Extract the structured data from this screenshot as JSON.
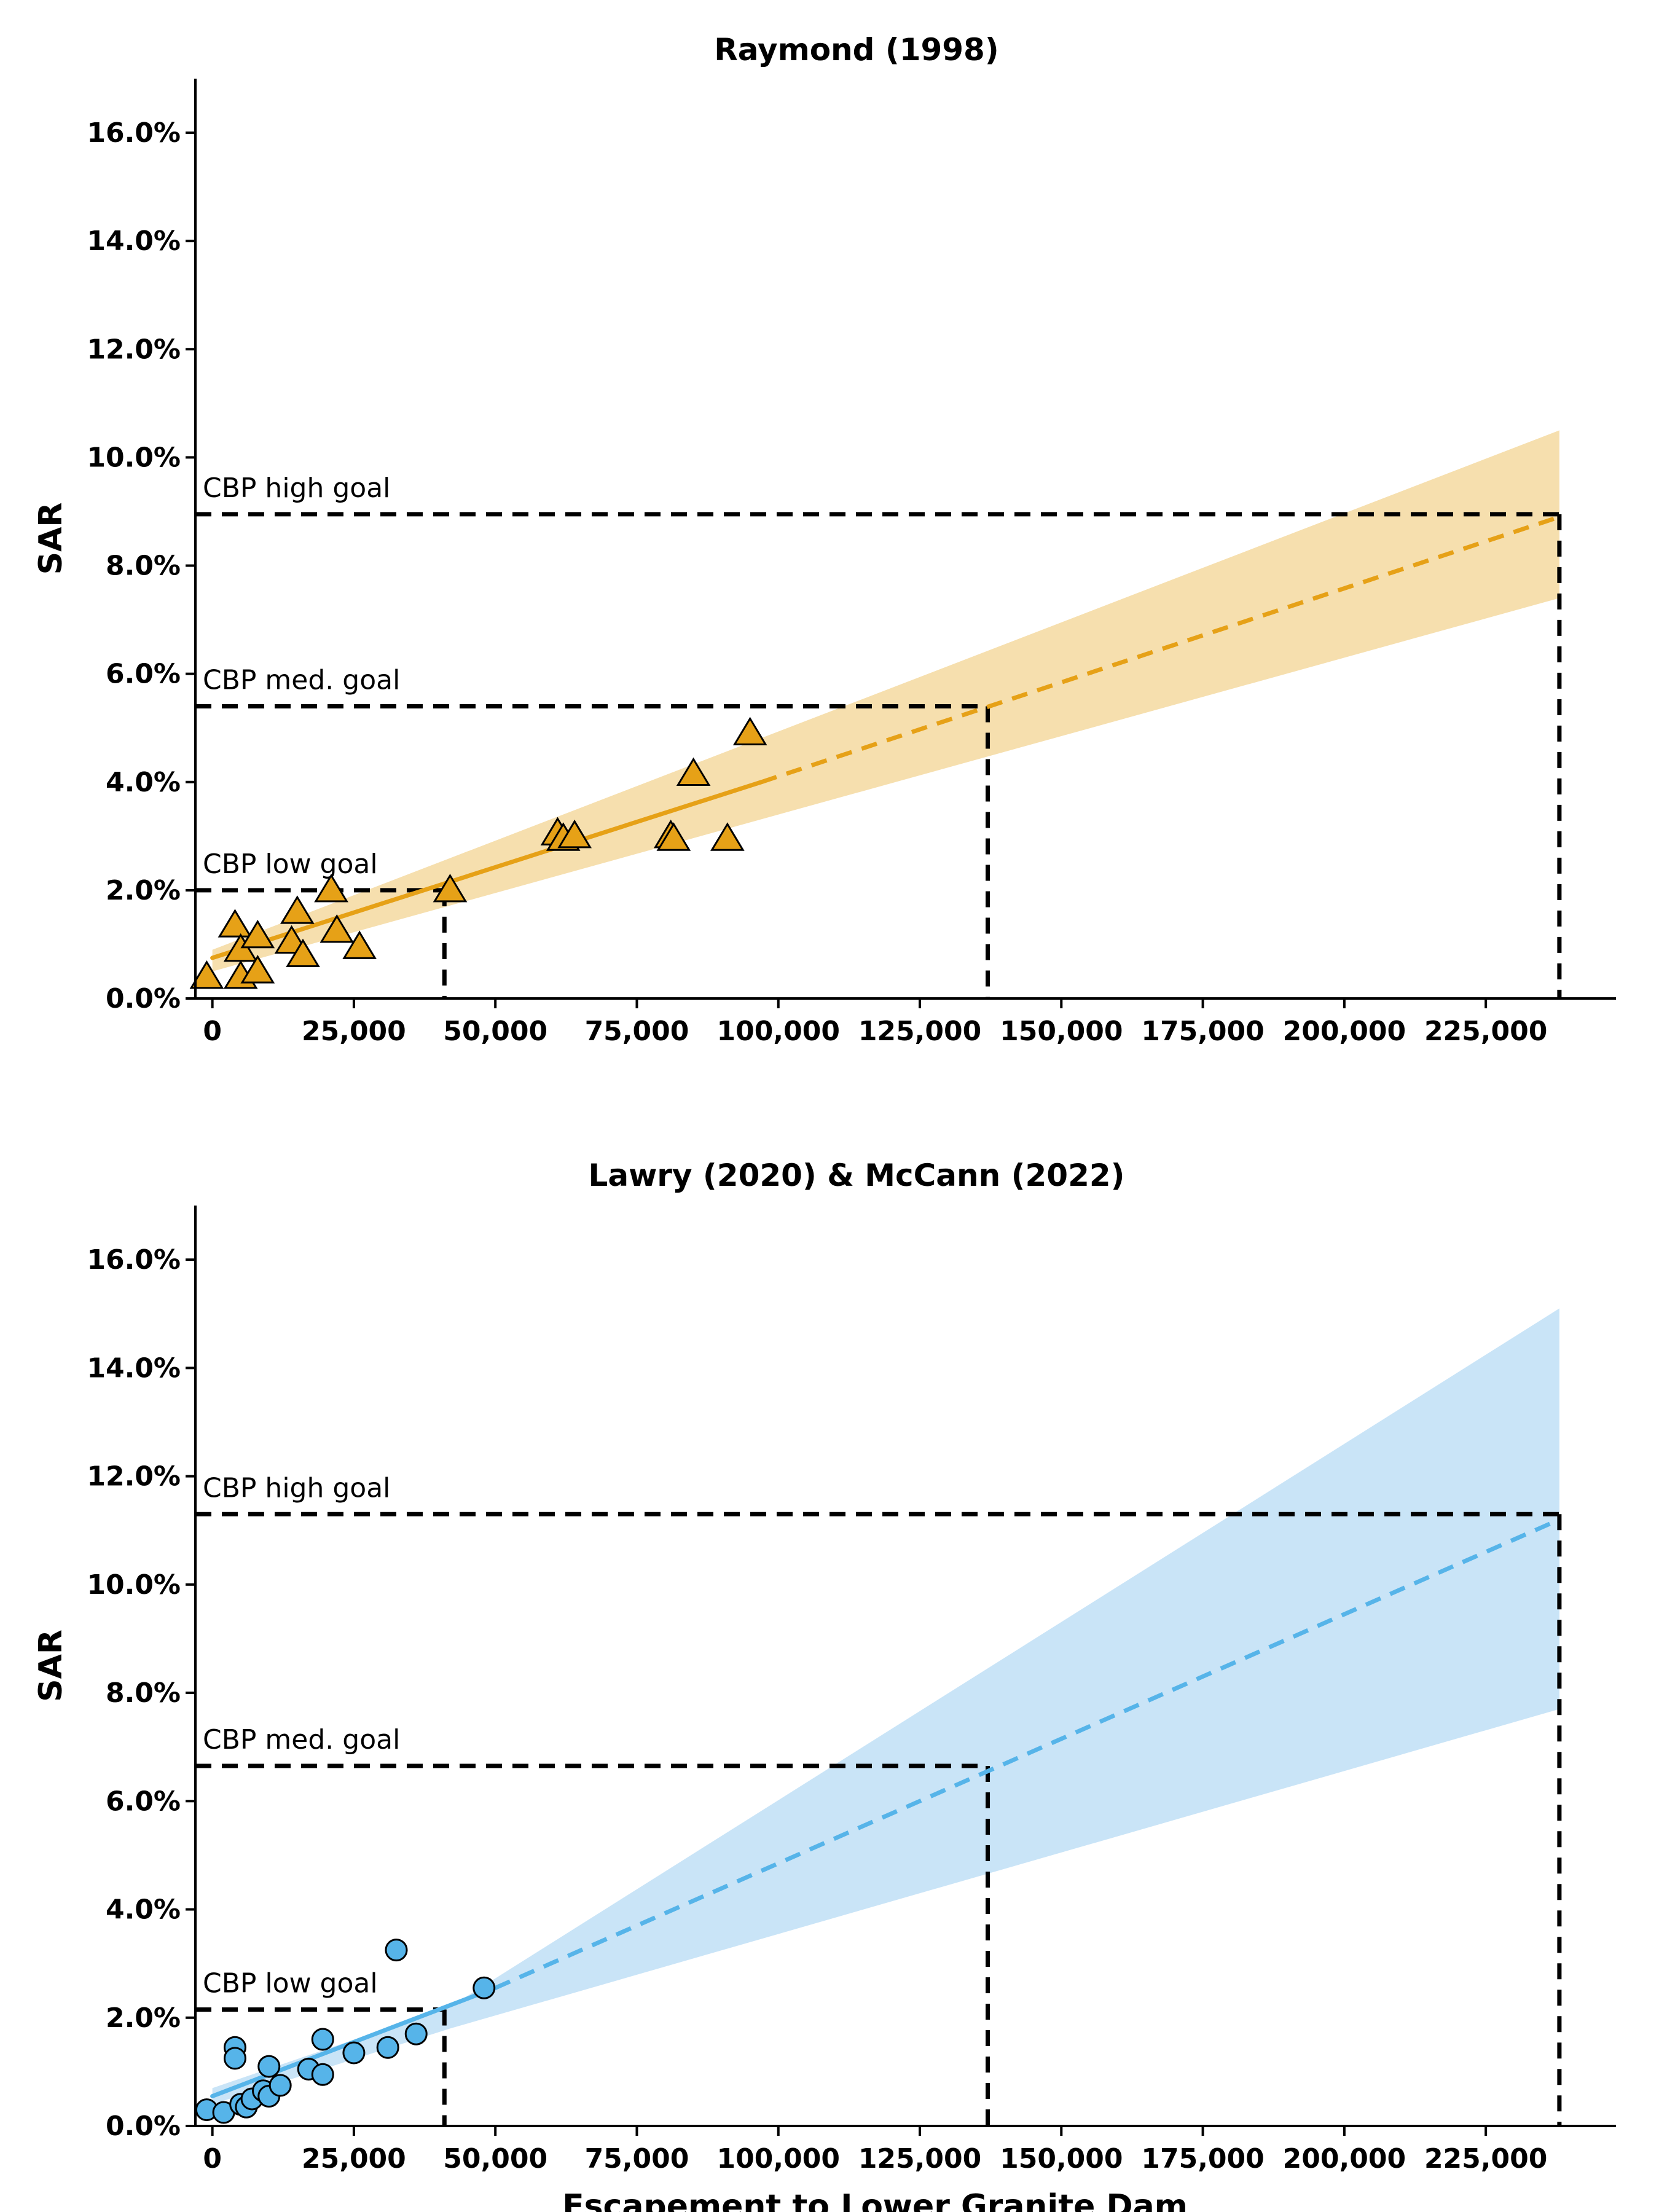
{
  "chart_data": [
    {
      "type": "scatter",
      "title": "Raymond (1998)",
      "xlabel": "",
      "ylabel": "SAR",
      "xlim": [
        -3000,
        248000
      ],
      "ylim": [
        0,
        0.17
      ],
      "xticks": [
        0,
        25000,
        50000,
        75000,
        100000,
        125000,
        150000,
        175000,
        200000,
        225000
      ],
      "xtick_labels": [
        "0",
        "25,000",
        "50,000",
        "75,000",
        "100,000",
        "125,000",
        "150,000",
        "175,000",
        "200,000",
        "225,000"
      ],
      "yticks": [
        0,
        0.02,
        0.04,
        0.06,
        0.08,
        0.1,
        0.12,
        0.14,
        0.16
      ],
      "ytick_labels": [
        "0.0%",
        "2.0%",
        "4.0%",
        "6.0%",
        "8.0%",
        "10.0%",
        "12.0%",
        "14.0%",
        "16.0%"
      ],
      "color": "#E6A117",
      "band_color": "#F6DFAE",
      "marker": "triangle",
      "points": [
        [
          -1000,
          0.004
        ],
        [
          4000,
          0.0135
        ],
        [
          5000,
          0.009
        ],
        [
          5000,
          0.004
        ],
        [
          8000,
          0.0115
        ],
        [
          8000,
          0.005
        ],
        [
          14000,
          0.0105
        ],
        [
          15000,
          0.016
        ],
        [
          16000,
          0.008
        ],
        [
          21000,
          0.02
        ],
        [
          22000,
          0.0125
        ],
        [
          26000,
          0.0095
        ],
        [
          42000,
          0.02
        ],
        [
          61000,
          0.0305
        ],
        [
          62000,
          0.0295
        ],
        [
          64000,
          0.03
        ],
        [
          81000,
          0.03
        ],
        [
          81500,
          0.0295
        ],
        [
          85000,
          0.0415
        ],
        [
          91000,
          0.0295
        ],
        [
          95000,
          0.049
        ]
      ],
      "fit_solid": [
        [
          0,
          0.0075
        ],
        [
          97000,
          0.04
        ]
      ],
      "fit_dashed": [
        [
          97000,
          0.04
        ],
        [
          238000,
          0.089
        ]
      ],
      "band": {
        "x": [
          0,
          238000
        ],
        "lower": [
          0.005,
          0.074
        ],
        "upper": [
          0.009,
          0.105
        ]
      },
      "goals": [
        {
          "label": "CBP high goal",
          "sar": 0.0895,
          "escapement": 238000
        },
        {
          "label": "CBP med. goal",
          "sar": 0.054,
          "escapement": 137000
        },
        {
          "label": "CBP low goal",
          "sar": 0.02,
          "escapement": 41000
        }
      ]
    },
    {
      "type": "scatter",
      "title": "Lawry (2020) & McCann (2022)",
      "xlabel": "Escapement to Lower Granite Dam",
      "ylabel": "SAR",
      "xlim": [
        -3000,
        248000
      ],
      "ylim": [
        0,
        0.17
      ],
      "xticks": [
        0,
        25000,
        50000,
        75000,
        100000,
        125000,
        150000,
        175000,
        200000,
        225000
      ],
      "xtick_labels": [
        "0",
        "25,000",
        "50,000",
        "75,000",
        "100,000",
        "125,000",
        "150,000",
        "175,000",
        "200,000",
        "225,000"
      ],
      "yticks": [
        0,
        0.02,
        0.04,
        0.06,
        0.08,
        0.1,
        0.12,
        0.14,
        0.16
      ],
      "ytick_labels": [
        "0.0%",
        "2.0%",
        "4.0%",
        "6.0%",
        "8.0%",
        "10.0%",
        "12.0%",
        "14.0%",
        "16.0%"
      ],
      "color": "#56B4E9",
      "band_color": "#C9E4F7",
      "marker": "circle",
      "points": [
        [
          -1000,
          0.003
        ],
        [
          2000,
          0.0025
        ],
        [
          4000,
          0.0145
        ],
        [
          4000,
          0.0125
        ],
        [
          5000,
          0.004
        ],
        [
          6000,
          0.0035
        ],
        [
          7000,
          0.005
        ],
        [
          9000,
          0.0065
        ],
        [
          10000,
          0.011
        ],
        [
          10000,
          0.0055
        ],
        [
          12000,
          0.0075
        ],
        [
          17000,
          0.0105
        ],
        [
          19500,
          0.016
        ],
        [
          19500,
          0.0095
        ],
        [
          25000,
          0.0135
        ],
        [
          31000,
          0.0145
        ],
        [
          32500,
          0.0325
        ],
        [
          36000,
          0.017
        ],
        [
          48000,
          0.0255
        ]
      ],
      "fit_solid": [
        [
          0,
          0.0055
        ],
        [
          50000,
          0.0255
        ]
      ],
      "fit_dashed": [
        [
          50000,
          0.0255
        ],
        [
          238000,
          0.112
        ]
      ],
      "band": {
        "x": [
          0,
          42000,
          238000
        ],
        "lower": [
          0.004,
          0.018,
          0.077
        ],
        "upper": [
          0.007,
          0.022,
          0.151
        ]
      },
      "goals": [
        {
          "label": "CBP high goal",
          "sar": 0.113,
          "escapement": 238000
        },
        {
          "label": "CBP med. goal",
          "sar": 0.0665,
          "escapement": 137000
        },
        {
          "label": "CBP low goal",
          "sar": 0.0215,
          "escapement": 41000
        }
      ]
    }
  ]
}
